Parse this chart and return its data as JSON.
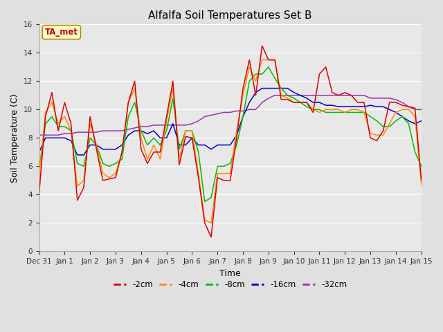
{
  "title": "Alfalfa Soil Temperatures Set B",
  "xlabel": "Time",
  "ylabel": "Soil Temperature (C)",
  "ylim": [
    0,
    16
  ],
  "yticks": [
    0,
    2,
    4,
    6,
    8,
    10,
    12,
    14,
    16
  ],
  "background_color": "#e0e0e0",
  "plot_bg_color": "#e8e8e8",
  "annotation_label": "TA_met",
  "annotation_box_color": "#ffffcc",
  "annotation_text_color": "#cc0000",
  "series_colors": {
    "-2cm": "#dd0000",
    "-4cm": "#ff8800",
    "-8cm": "#00bb00",
    "-16cm": "#0000cc",
    "-32cm": "#9933aa"
  },
  "x_tick_labels": [
    "Dec 31",
    "Jan 1",
    "Jan 2",
    "Jan 3",
    "Jan 4",
    "Jan 5",
    "Jan 6",
    "Jan 7",
    "Jan 8",
    "Jan 9",
    "Jan 10",
    "Jan 11",
    "Jan 12",
    "Jan 13",
    "Jan 14",
    "Jan 15"
  ],
  "num_days": 15,
  "series_2cm": [
    4.1,
    9.5,
    11.2,
    8.5,
    10.5,
    9.0,
    3.6,
    4.5,
    9.5,
    7.2,
    5.0,
    5.1,
    5.2,
    7.0,
    10.5,
    12.0,
    7.2,
    6.2,
    7.0,
    7.0,
    9.5,
    12.0,
    6.1,
    8.1,
    8.0,
    5.2,
    2.0,
    1.0,
    5.2,
    5.0,
    5.0,
    8.0,
    11.5,
    13.5,
    11.0,
    14.5,
    13.5,
    13.5,
    10.7,
    10.7,
    10.5,
    10.5,
    10.5,
    9.8,
    12.5,
    13.0,
    11.2,
    11.0,
    11.2,
    11.0,
    10.5,
    10.5,
    8.0,
    7.8,
    8.5,
    10.5,
    10.5,
    10.3,
    10.2,
    10.1,
    5.0
  ],
  "series_4cm": [
    5.2,
    9.8,
    10.5,
    9.0,
    9.5,
    8.5,
    4.6,
    5.0,
    9.0,
    7.5,
    5.5,
    5.2,
    5.5,
    7.0,
    10.5,
    11.5,
    8.0,
    6.5,
    7.5,
    6.5,
    9.2,
    11.5,
    6.5,
    8.5,
    8.5,
    5.5,
    2.2,
    2.0,
    5.5,
    5.5,
    5.5,
    8.5,
    11.0,
    13.0,
    12.0,
    13.5,
    13.5,
    13.5,
    11.0,
    10.8,
    10.5,
    10.5,
    10.5,
    10.0,
    9.8,
    10.0,
    10.0,
    10.0,
    9.8,
    10.0,
    10.0,
    9.8,
    8.3,
    8.2,
    8.2,
    9.0,
    9.8,
    10.0,
    10.0,
    9.5,
    4.7
  ],
  "series_8cm": [
    5.8,
    9.0,
    9.5,
    8.8,
    8.8,
    8.5,
    6.2,
    6.0,
    8.0,
    7.5,
    6.2,
    6.0,
    6.2,
    6.5,
    9.5,
    10.5,
    8.5,
    7.5,
    8.0,
    7.5,
    8.5,
    10.8,
    7.2,
    8.5,
    8.5,
    7.0,
    3.5,
    3.8,
    6.0,
    6.0,
    6.2,
    7.5,
    9.5,
    12.0,
    12.5,
    12.5,
    13.0,
    12.2,
    11.5,
    11.0,
    10.8,
    10.5,
    10.2,
    10.0,
    10.0,
    9.8,
    9.8,
    9.8,
    9.8,
    9.8,
    9.8,
    9.8,
    9.5,
    9.2,
    8.8,
    8.8,
    9.2,
    9.5,
    9.0,
    7.0,
    6.0
  ],
  "series_16cm": [
    7.0,
    8.0,
    8.0,
    8.0,
    8.0,
    7.8,
    6.8,
    6.8,
    7.5,
    7.5,
    7.2,
    7.2,
    7.2,
    7.5,
    8.2,
    8.5,
    8.5,
    8.3,
    8.5,
    8.0,
    8.0,
    9.0,
    7.5,
    7.5,
    8.0,
    7.5,
    7.5,
    7.2,
    7.5,
    7.5,
    7.5,
    8.2,
    9.5,
    10.5,
    11.2,
    11.5,
    11.5,
    11.5,
    11.5,
    11.5,
    11.2,
    11.0,
    10.8,
    10.5,
    10.5,
    10.3,
    10.3,
    10.2,
    10.2,
    10.2,
    10.2,
    10.2,
    10.3,
    10.2,
    10.2,
    10.0,
    9.8,
    9.5,
    9.2,
    9.0,
    9.2
  ],
  "series_32cm": [
    8.2,
    8.2,
    8.2,
    8.2,
    8.3,
    8.3,
    8.4,
    8.4,
    8.4,
    8.4,
    8.5,
    8.5,
    8.5,
    8.5,
    8.6,
    8.7,
    8.8,
    8.8,
    8.9,
    8.9,
    8.9,
    8.9,
    8.9,
    8.9,
    9.0,
    9.2,
    9.5,
    9.6,
    9.7,
    9.8,
    9.8,
    9.9,
    9.9,
    10.0,
    10.0,
    10.5,
    10.8,
    11.0,
    11.0,
    11.0,
    11.0,
    11.0,
    11.0,
    11.0,
    11.0,
    11.0,
    11.0,
    11.0,
    11.0,
    11.0,
    11.0,
    11.0,
    10.8,
    10.8,
    10.8,
    10.8,
    10.7,
    10.5,
    10.2,
    10.0,
    10.0
  ]
}
